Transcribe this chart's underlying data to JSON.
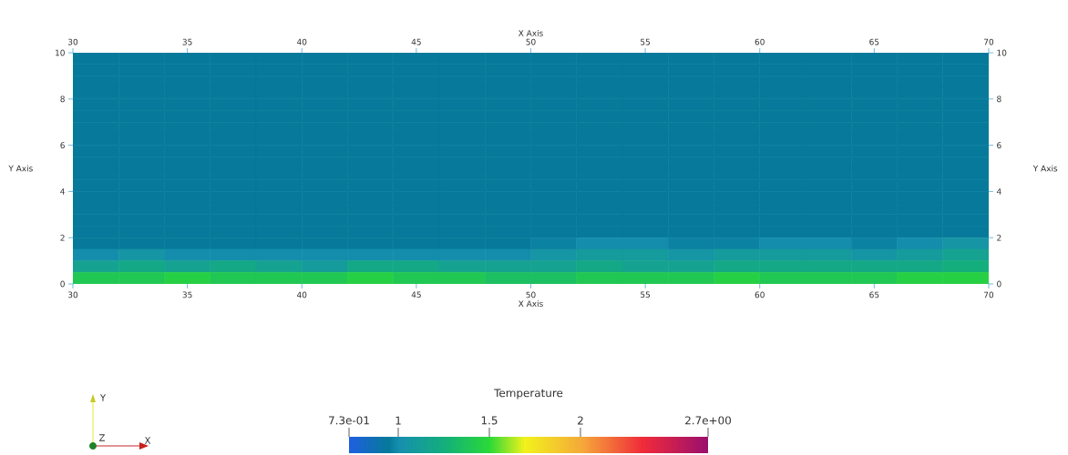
{
  "chart_data": {
    "type": "heatmap",
    "cells": [
      [
        0.95,
        0.95,
        0.95,
        0.95,
        0.95,
        0.95,
        0.95,
        0.95,
        0.95,
        0.95,
        0.95,
        0.95,
        0.95,
        0.95,
        0.95,
        0.95,
        0.95,
        0.95,
        0.95,
        0.95
      ],
      [
        0.95,
        0.95,
        0.95,
        0.95,
        0.95,
        0.95,
        0.95,
        0.95,
        0.95,
        0.95,
        0.95,
        0.95,
        0.95,
        0.95,
        0.95,
        0.95,
        0.95,
        0.95,
        0.95,
        0.95
      ],
      [
        0.95,
        0.95,
        0.95,
        0.95,
        0.95,
        0.95,
        0.95,
        0.95,
        0.95,
        0.95,
        0.95,
        0.95,
        0.95,
        0.95,
        0.95,
        0.95,
        0.95,
        0.95,
        0.95,
        0.95
      ],
      [
        0.95,
        0.95,
        0.95,
        0.95,
        0.95,
        0.95,
        0.95,
        0.95,
        0.95,
        0.95,
        0.95,
        0.95,
        0.95,
        0.95,
        0.95,
        0.95,
        0.95,
        0.95,
        0.95,
        0.95
      ],
      [
        0.95,
        0.95,
        0.95,
        0.95,
        0.95,
        0.95,
        0.95,
        0.95,
        0.95,
        0.95,
        0.95,
        0.95,
        0.95,
        0.95,
        0.95,
        0.95,
        0.95,
        0.95,
        0.95,
        0.95
      ],
      [
        0.95,
        0.95,
        0.95,
        0.95,
        0.95,
        0.95,
        0.95,
        0.95,
        0.95,
        0.95,
        0.95,
        0.95,
        0.95,
        0.95,
        0.95,
        0.95,
        0.95,
        0.95,
        0.95,
        0.95
      ],
      [
        0.95,
        0.95,
        0.95,
        0.95,
        0.95,
        0.95,
        0.95,
        0.95,
        0.95,
        0.95,
        0.95,
        0.95,
        0.95,
        0.95,
        0.95,
        0.95,
        0.95,
        0.95,
        0.95,
        0.95
      ],
      [
        0.95,
        0.95,
        0.95,
        0.95,
        0.95,
        0.95,
        0.95,
        0.95,
        0.95,
        0.95,
        0.95,
        0.95,
        0.95,
        0.95,
        0.95,
        0.95,
        0.95,
        0.95,
        0.95,
        0.95
      ],
      [
        0.95,
        0.95,
        0.95,
        0.95,
        0.95,
        0.95,
        0.95,
        0.95,
        0.95,
        0.95,
        0.95,
        0.95,
        0.95,
        0.95,
        0.95,
        0.95,
        0.95,
        0.95,
        0.95,
        0.95
      ],
      [
        0.95,
        0.95,
        0.95,
        0.95,
        0.95,
        0.95,
        0.95,
        0.95,
        0.95,
        0.95,
        0.95,
        0.95,
        0.95,
        0.95,
        0.95,
        0.95,
        0.95,
        0.95,
        0.95,
        0.95
      ],
      [
        0.95,
        0.95,
        0.95,
        0.95,
        0.95,
        0.95,
        0.95,
        0.95,
        0.95,
        0.95,
        0.95,
        0.95,
        0.95,
        0.95,
        0.95,
        0.95,
        0.95,
        0.95,
        0.95,
        0.95
      ],
      [
        0.95,
        0.95,
        0.95,
        0.95,
        0.95,
        0.95,
        0.95,
        0.95,
        0.95,
        0.95,
        0.95,
        0.95,
        0.95,
        0.95,
        0.95,
        0.95,
        0.95,
        0.95,
        0.95,
        0.95
      ],
      [
        0.95,
        0.95,
        0.95,
        0.95,
        0.95,
        0.95,
        0.95,
        0.95,
        0.95,
        0.95,
        0.95,
        0.95,
        0.95,
        0.95,
        0.95,
        0.95,
        0.95,
        0.95,
        0.95,
        0.95
      ],
      [
        0.95,
        0.95,
        0.95,
        0.95,
        0.95,
        0.95,
        0.95,
        0.95,
        0.95,
        0.95,
        0.95,
        0.95,
        0.95,
        0.95,
        0.95,
        0.95,
        0.95,
        0.95,
        0.95,
        0.95
      ],
      [
        0.95,
        0.95,
        0.95,
        0.95,
        0.95,
        0.95,
        0.95,
        0.95,
        0.95,
        0.95,
        0.95,
        0.95,
        0.95,
        0.95,
        0.95,
        0.95,
        0.95,
        0.95,
        0.95,
        0.95
      ],
      [
        0.95,
        0.95,
        0.95,
        0.95,
        0.95,
        0.95,
        0.95,
        0.95,
        0.95,
        0.95,
        0.95,
        0.95,
        0.95,
        0.95,
        0.95,
        0.95,
        0.95,
        0.95,
        0.95,
        0.95
      ],
      [
        0.95,
        0.95,
        0.95,
        0.95,
        0.95,
        0.95,
        0.95,
        0.95,
        0.95,
        0.95,
        0.97,
        1.0,
        1.0,
        0.97,
        0.97,
        1.0,
        1.0,
        0.97,
        1.0,
        1.05
      ],
      [
        1.0,
        1.05,
        1.0,
        1.0,
        1.0,
        1.0,
        1.0,
        1.0,
        1.0,
        1.0,
        1.05,
        1.1,
        1.1,
        1.05,
        1.1,
        1.1,
        1.1,
        1.05,
        1.1,
        1.15
      ],
      [
        1.15,
        1.2,
        1.15,
        1.2,
        1.15,
        1.1,
        1.2,
        1.2,
        1.15,
        1.15,
        1.15,
        1.2,
        1.15,
        1.15,
        1.2,
        1.2,
        1.2,
        1.2,
        1.2,
        1.25
      ],
      [
        1.4,
        1.4,
        1.45,
        1.4,
        1.4,
        1.4,
        1.45,
        1.4,
        1.4,
        1.35,
        1.35,
        1.4,
        1.4,
        1.4,
        1.45,
        1.4,
        1.4,
        1.4,
        1.45,
        1.45
      ]
    ],
    "clim": [
      0.73,
      2.7
    ],
    "cticks": [
      {
        "value": 0.73,
        "label": "7.3e-01"
      },
      1,
      1.5,
      2,
      {
        "value": 2.7,
        "label": "2.7e+00"
      }
    ],
    "clabel": "Temperature",
    "xlim": [
      30,
      70
    ],
    "xticks": [
      30,
      35,
      40,
      45,
      50,
      55,
      60,
      65,
      70
    ],
    "ylim": [
      0,
      10
    ],
    "yticks": [
      0,
      2,
      4,
      6,
      8,
      10
    ],
    "x2lim": [
      30,
      70
    ],
    "x2ticks": [
      30,
      35,
      40,
      45,
      50,
      55,
      60,
      65,
      70
    ],
    "y2lim": [
      0,
      10
    ],
    "y2ticks": [
      0,
      2,
      4,
      6,
      8,
      10
    ],
    "xlabel": "X Axis",
    "ylabel": "Y Axis",
    "x2label": "X Axis",
    "y2label": "Y Axis",
    "annotations": [
      "X",
      "Y",
      "Z"
    ]
  }
}
